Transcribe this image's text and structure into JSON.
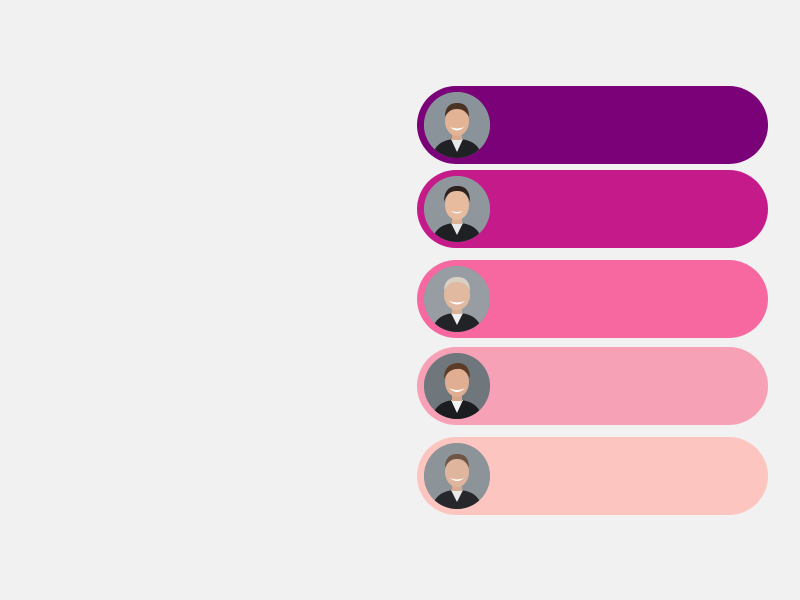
{
  "rows": [
    {
      "color": "#7a0177",
      "portrait": "man-portrait-1"
    },
    {
      "color": "#c51b8a",
      "portrait": "man-portrait-2"
    },
    {
      "color": "#f768a1",
      "portrait": "man-portrait-3"
    },
    {
      "color": "#f7a1b7",
      "portrait": "man-portrait-4"
    },
    {
      "color": "#fcc5c0",
      "portrait": "man-portrait-5"
    }
  ]
}
